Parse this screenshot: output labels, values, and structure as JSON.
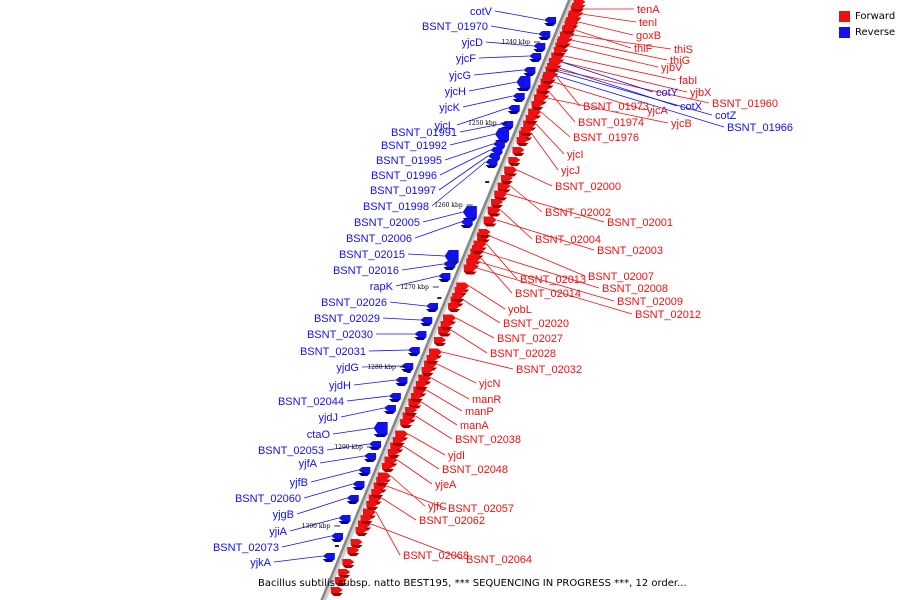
{
  "legend": {
    "items": [
      {
        "label": "Forward",
        "color": "#ee1111"
      },
      {
        "label": "Reverse",
        "color": "#1111ee"
      }
    ]
  },
  "caption": "Bacillus subtilis subsp. natto BEST195, *** SEQUENCING IN PROGRESS ***, 12 order...",
  "ticks": [
    "1240 kbp",
    "1250 kbp",
    "1260 kbp",
    "1270 kbp",
    "1280 kbp",
    "1290 kbp",
    "1300 kbp"
  ],
  "colors": {
    "forward": "#ee1111",
    "reverse": "#1111ee",
    "axis": "#888888"
  },
  "genes_forward": [
    "tenA",
    "tenI",
    "goxB",
    "thiF",
    "thiS",
    "thiG",
    "yjbV",
    "fabI",
    "yjbX",
    "BSNT_01960",
    "BSNT_01973",
    "yjcA",
    "BSNT_01974",
    "yjcB",
    "BSNT_01976",
    "yjcI",
    "yjcJ",
    "BSNT_02000",
    "BSNT_02002",
    "BSNT_02001",
    "BSNT_02004",
    "BSNT_02003",
    "BSNT_02007",
    "BSNT_02013",
    "BSNT_02008",
    "BSNT_02014",
    "BSNT_02009",
    "BSNT_02012",
    "yobL",
    "BSNT_02020",
    "BSNT_02027",
    "BSNT_02028",
    "BSNT_02032",
    "yjcN",
    "manR",
    "manP",
    "manA",
    "BSNT_02038",
    "yjdI",
    "BSNT_02048",
    "yjeA",
    "yjfC",
    "BSNT_02057",
    "BSNT_02062",
    "BSNT_02068",
    "BSNT_02064"
  ],
  "genes_reverse_right": [
    "cotY",
    "cotX",
    "cotZ",
    "BSNT_01966"
  ],
  "genes_reverse_left": [
    "cotV",
    "BSNT_01970",
    "yjcD",
    "yjcF",
    "yjcG",
    "yjcH",
    "yjcK",
    "yjcL",
    "BSNT_01991",
    "BSNT_01992",
    "BSNT_01995",
    "BSNT_01996",
    "BSNT_01997",
    "BSNT_01998",
    "BSNT_02005",
    "BSNT_02006",
    "BSNT_02015",
    "BSNT_02016",
    "rapK",
    "BSNT_02026",
    "BSNT_02029",
    "BSNT_02030",
    "BSNT_02031",
    "yjdG",
    "yjdH",
    "BSNT_02044",
    "yjdJ",
    "ctaO",
    "BSNT_02053",
    "yjfA",
    "yjfB",
    "BSNT_02060",
    "yjgB",
    "yjiA",
    "BSNT_02073",
    "yjkA"
  ]
}
